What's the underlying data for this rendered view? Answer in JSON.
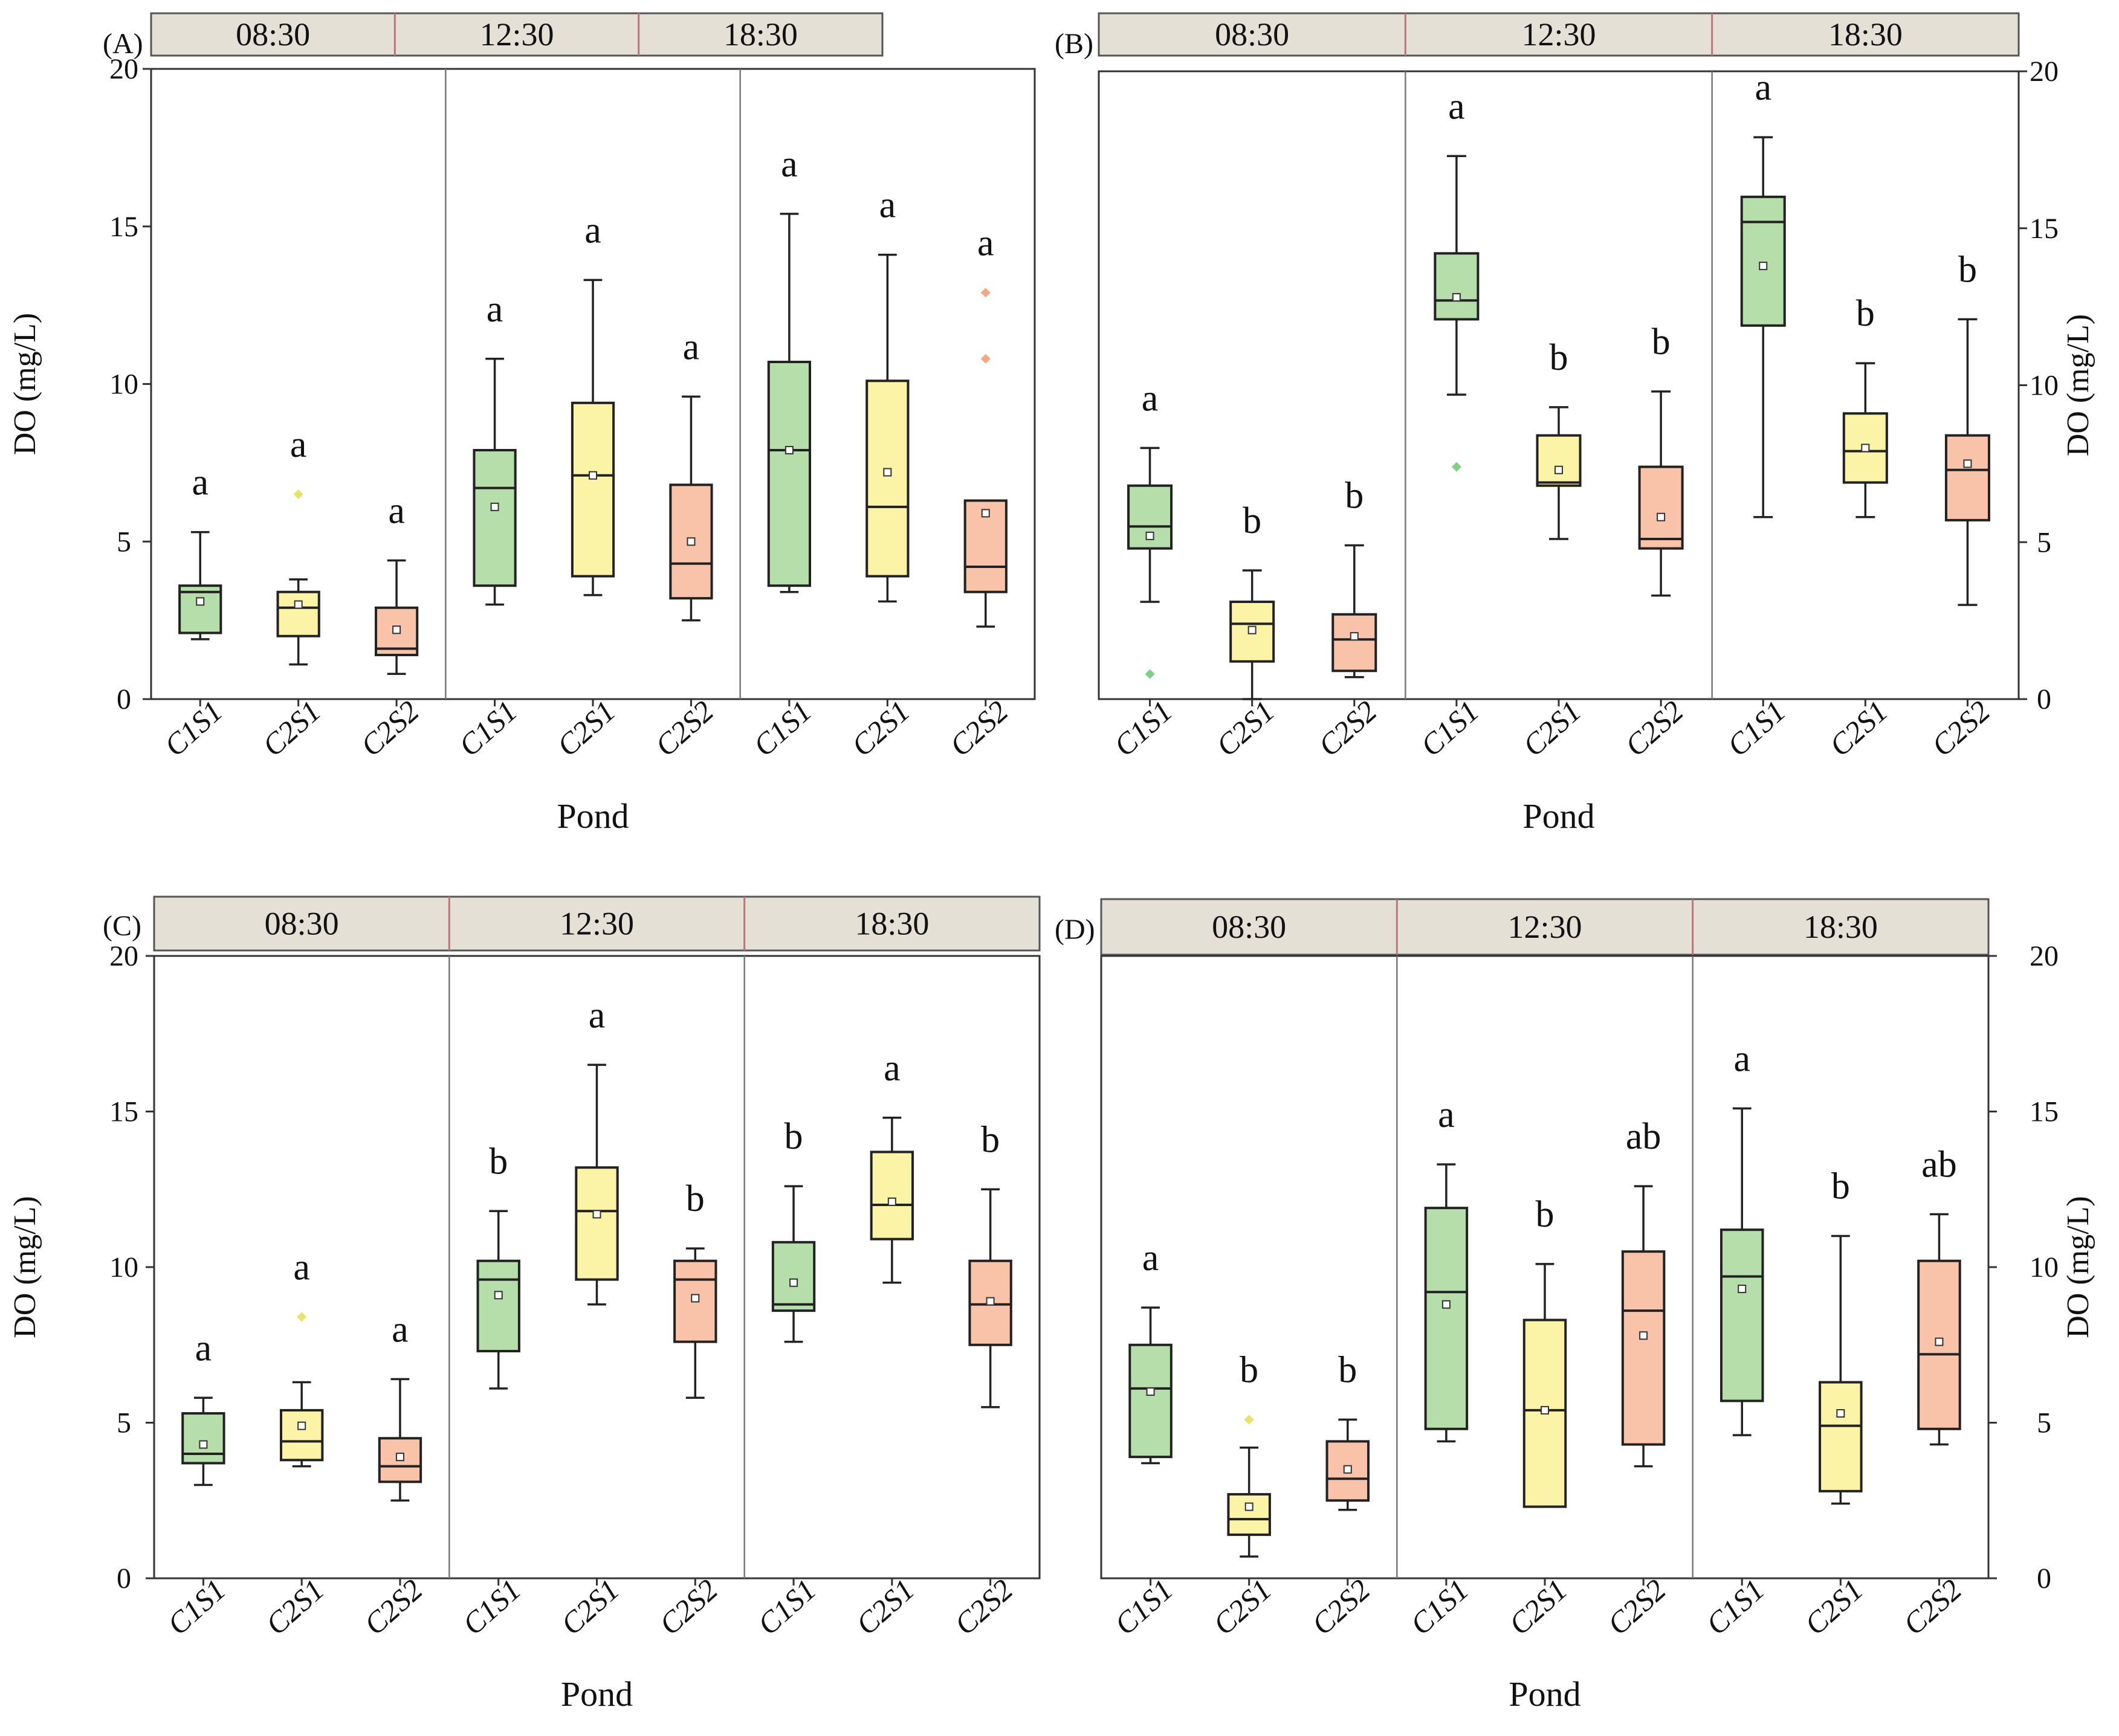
{
  "figure": {
    "colors": {
      "C1S1": "#b5deaa",
      "C2S1": "#fbf3a6",
      "C2S2": "#f8c3a8",
      "header": "#e5e0d6",
      "axis": "#333333",
      "divider": "#777777",
      "outlier_C1S1": "#7dcf8a",
      "outlier_C2S1": "#e8e36a",
      "outlier_C2S2": "#f2a882"
    }
  },
  "chart_data": [
    {
      "type": "box",
      "panel_label": "(A)",
      "time_groups": [
        "08:30",
        "12:30",
        "18:30"
      ],
      "categories": [
        "C1S1",
        "C2S1",
        "C2S2"
      ],
      "xlabel": "Pond",
      "ylabel": "DO  (mg/L)",
      "ylim": [
        0,
        20
      ],
      "yticks": [
        "0",
        "5",
        "10",
        "15",
        "20"
      ],
      "boxes": [
        {
          "group": "08:30",
          "cat": "C1S1",
          "min": 1.9,
          "q1": 2.1,
          "median": 3.4,
          "q3": 3.6,
          "max": 5.3,
          "mean": 3.1,
          "outliers": [],
          "letter": "a"
        },
        {
          "group": "08:30",
          "cat": "C2S1",
          "min": 1.1,
          "q1": 2.0,
          "median": 2.9,
          "q3": 3.4,
          "max": 3.8,
          "mean": 3.0,
          "outliers": [
            6.5
          ],
          "letter": "a"
        },
        {
          "group": "08:30",
          "cat": "C2S2",
          "min": 0.8,
          "q1": 1.4,
          "median": 1.6,
          "q3": 2.9,
          "max": 4.4,
          "mean": 2.2,
          "outliers": [],
          "letter": "a"
        },
        {
          "group": "12:30",
          "cat": "C1S1",
          "min": 3.0,
          "q1": 3.6,
          "median": 6.7,
          "q3": 7.9,
          "max": 10.8,
          "mean": 6.1,
          "outliers": [],
          "letter": "a"
        },
        {
          "group": "12:30",
          "cat": "C2S1",
          "min": 3.3,
          "q1": 3.9,
          "median": 7.1,
          "q3": 9.4,
          "max": 13.3,
          "mean": 7.1,
          "outliers": [],
          "letter": "a"
        },
        {
          "group": "12:30",
          "cat": "C2S2",
          "min": 2.5,
          "q1": 3.2,
          "median": 4.3,
          "q3": 6.8,
          "max": 9.6,
          "mean": 5.0,
          "outliers": [],
          "letter": "a"
        },
        {
          "group": "18:30",
          "cat": "C1S1",
          "min": 3.4,
          "q1": 3.6,
          "median": 7.9,
          "q3": 10.7,
          "max": 15.4,
          "mean": 7.9,
          "outliers": [],
          "letter": "a"
        },
        {
          "group": "18:30",
          "cat": "C2S1",
          "min": 3.1,
          "q1": 3.9,
          "median": 6.1,
          "q3": 10.1,
          "max": 14.1,
          "mean": 7.2,
          "outliers": [],
          "letter": "a"
        },
        {
          "group": "18:30",
          "cat": "C2S2",
          "min": 2.3,
          "q1": 3.4,
          "median": 4.2,
          "q3": 6.3,
          "max": 6.3,
          "mean": 5.9,
          "outliers": [
            10.8,
            12.9
          ],
          "letter": "a"
        }
      ]
    },
    {
      "type": "box",
      "panel_label": "(B)",
      "time_groups": [
        "08:30",
        "12:30",
        "18:30"
      ],
      "categories": [
        "C1S1",
        "C2S1",
        "C2S2"
      ],
      "xlabel": "Pond",
      "ylabel": "DO  (mg/L)",
      "ylim": [
        0,
        20
      ],
      "yticks": [
        "0",
        "5",
        "10",
        "15",
        "20"
      ],
      "boxes": [
        {
          "group": "08:30",
          "cat": "C1S1",
          "min": 3.1,
          "q1": 4.8,
          "median": 5.5,
          "q3": 6.8,
          "max": 8.0,
          "mean": 5.2,
          "outliers": [
            0.8
          ],
          "letter": "a"
        },
        {
          "group": "08:30",
          "cat": "C2S1",
          "min": 0.0,
          "q1": 1.2,
          "median": 2.4,
          "q3": 3.1,
          "max": 4.1,
          "mean": 2.2,
          "outliers": [],
          "letter": "b"
        },
        {
          "group": "08:30",
          "cat": "C2S2",
          "min": 0.7,
          "q1": 0.9,
          "median": 1.9,
          "q3": 2.7,
          "max": 4.9,
          "mean": 2.0,
          "outliers": [],
          "letter": "b"
        },
        {
          "group": "12:30",
          "cat": "C1S1",
          "min": 9.7,
          "q1": 12.1,
          "median": 12.7,
          "q3": 14.2,
          "max": 17.3,
          "mean": 12.8,
          "outliers": [
            7.4
          ],
          "letter": "a"
        },
        {
          "group": "12:30",
          "cat": "C2S1",
          "min": 5.1,
          "q1": 6.8,
          "median": 6.9,
          "q3": 8.4,
          "max": 9.3,
          "mean": 7.3,
          "outliers": [],
          "letter": "b"
        },
        {
          "group": "12:30",
          "cat": "C2S2",
          "min": 3.3,
          "q1": 4.8,
          "median": 5.1,
          "q3": 7.4,
          "max": 9.8,
          "mean": 5.8,
          "outliers": [],
          "letter": "b"
        },
        {
          "group": "18:30",
          "cat": "C1S1",
          "min": 5.8,
          "q1": 11.9,
          "median": 15.2,
          "q3": 16.0,
          "max": 17.9,
          "mean": 13.8,
          "outliers": [],
          "letter": "a"
        },
        {
          "group": "18:30",
          "cat": "C2S1",
          "min": 5.8,
          "q1": 6.9,
          "median": 7.9,
          "q3": 9.1,
          "max": 10.7,
          "mean": 8.0,
          "outliers": [],
          "letter": "b"
        },
        {
          "group": "18:30",
          "cat": "C2S2",
          "min": 3.0,
          "q1": 5.7,
          "median": 7.3,
          "q3": 8.4,
          "max": 12.1,
          "mean": 7.5,
          "outliers": [],
          "letter": "b"
        }
      ]
    },
    {
      "type": "box",
      "panel_label": "(C)",
      "time_groups": [
        "08:30",
        "12:30",
        "18:30"
      ],
      "categories": [
        "C1S1",
        "C2S1",
        "C2S2"
      ],
      "xlabel": "Pond",
      "ylabel": "DO  (mg/L)",
      "ylim": [
        0,
        20
      ],
      "yticks": [
        "0",
        "5",
        "10",
        "15",
        "20"
      ],
      "boxes": [
        {
          "group": "08:30",
          "cat": "C1S1",
          "min": 3.0,
          "q1": 3.7,
          "median": 4.0,
          "q3": 5.3,
          "max": 5.8,
          "mean": 4.3,
          "outliers": [],
          "letter": "a"
        },
        {
          "group": "08:30",
          "cat": "C2S1",
          "min": 3.6,
          "q1": 3.8,
          "median": 4.4,
          "q3": 5.4,
          "max": 6.3,
          "mean": 4.9,
          "outliers": [
            8.4
          ],
          "letter": "a"
        },
        {
          "group": "08:30",
          "cat": "C2S2",
          "min": 2.5,
          "q1": 3.1,
          "median": 3.6,
          "q3": 4.5,
          "max": 6.4,
          "mean": 3.9,
          "outliers": [],
          "letter": "a"
        },
        {
          "group": "12:30",
          "cat": "C1S1",
          "min": 6.1,
          "q1": 7.3,
          "median": 9.6,
          "q3": 10.2,
          "max": 11.8,
          "mean": 9.1,
          "outliers": [],
          "letter": "b"
        },
        {
          "group": "12:30",
          "cat": "C2S1",
          "min": 8.8,
          "q1": 9.6,
          "median": 11.8,
          "q3": 13.2,
          "max": 16.5,
          "mean": 11.7,
          "outliers": [],
          "letter": "a"
        },
        {
          "group": "12:30",
          "cat": "C2S2",
          "min": 5.8,
          "q1": 7.6,
          "median": 9.6,
          "q3": 10.2,
          "max": 10.6,
          "mean": 9.0,
          "outliers": [],
          "letter": "b"
        },
        {
          "group": "18:30",
          "cat": "C1S1",
          "min": 7.6,
          "q1": 8.6,
          "median": 8.8,
          "q3": 10.8,
          "max": 12.6,
          "mean": 9.5,
          "outliers": [],
          "letter": "b"
        },
        {
          "group": "18:30",
          "cat": "C2S1",
          "min": 9.5,
          "q1": 10.9,
          "median": 12.0,
          "q3": 13.7,
          "max": 14.8,
          "mean": 12.1,
          "outliers": [],
          "letter": "a"
        },
        {
          "group": "18:30",
          "cat": "C2S2",
          "min": 5.5,
          "q1": 7.5,
          "median": 8.8,
          "q3": 10.2,
          "max": 12.5,
          "mean": 8.9,
          "outliers": [],
          "letter": "b"
        }
      ]
    },
    {
      "type": "box",
      "panel_label": "(D)",
      "time_groups": [
        "08:30",
        "12:30",
        "18:30"
      ],
      "categories": [
        "C1S1",
        "C2S1",
        "C2S2"
      ],
      "xlabel": "Pond",
      "ylabel": "DO  (mg/L)",
      "ylim": [
        0,
        20
      ],
      "yticks": [
        "0",
        "5",
        "10",
        "15",
        "20"
      ],
      "boxes": [
        {
          "group": "08:30",
          "cat": "C1S1",
          "min": 3.7,
          "q1": 3.9,
          "median": 6.1,
          "q3": 7.5,
          "max": 8.7,
          "mean": 6.0,
          "outliers": [],
          "letter": "a"
        },
        {
          "group": "08:30",
          "cat": "C2S1",
          "min": 0.7,
          "q1": 1.4,
          "median": 1.9,
          "q3": 2.7,
          "max": 4.2,
          "mean": 2.3,
          "outliers": [
            5.1
          ],
          "letter": "b"
        },
        {
          "group": "08:30",
          "cat": "C2S2",
          "min": 2.2,
          "q1": 2.5,
          "median": 3.2,
          "q3": 4.4,
          "max": 5.1,
          "mean": 3.5,
          "outliers": [],
          "letter": "b"
        },
        {
          "group": "12:30",
          "cat": "C1S1",
          "min": 4.4,
          "q1": 4.8,
          "median": 9.2,
          "q3": 11.9,
          "max": 13.3,
          "mean": 8.8,
          "outliers": [],
          "letter": "a"
        },
        {
          "group": "12:30",
          "cat": "C2S1",
          "min": 2.3,
          "q1": 2.3,
          "median": 5.4,
          "q3": 8.3,
          "max": 10.1,
          "mean": 5.4,
          "outliers": [],
          "letter": "b"
        },
        {
          "group": "12:30",
          "cat": "C2S2",
          "min": 3.6,
          "q1": 4.3,
          "median": 8.6,
          "q3": 10.5,
          "max": 12.6,
          "mean": 7.8,
          "outliers": [],
          "letter": "ab"
        },
        {
          "group": "18:30",
          "cat": "C1S1",
          "min": 4.6,
          "q1": 5.7,
          "median": 9.7,
          "q3": 11.2,
          "max": 15.1,
          "mean": 9.3,
          "outliers": [],
          "letter": "a"
        },
        {
          "group": "18:30",
          "cat": "C2S1",
          "min": 2.4,
          "q1": 2.8,
          "median": 4.9,
          "q3": 6.3,
          "max": 11.0,
          "mean": 5.3,
          "outliers": [],
          "letter": "b"
        },
        {
          "group": "18:30",
          "cat": "C2S2",
          "min": 4.3,
          "q1": 4.8,
          "median": 7.2,
          "q3": 10.2,
          "max": 11.7,
          "mean": 7.6,
          "outliers": [],
          "letter": "ab"
        }
      ]
    }
  ]
}
